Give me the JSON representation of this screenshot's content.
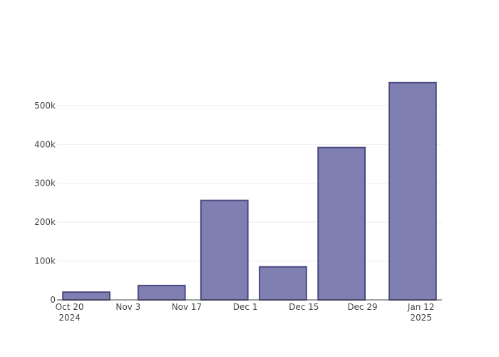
{
  "chart_data": {
    "type": "bar",
    "x": [
      "2024-10-24",
      "2024-11-11",
      "2024-11-26",
      "2024-12-10",
      "2024-12-24",
      "2025-01-10"
    ],
    "values": [
      20000,
      37000,
      256000,
      85000,
      392000,
      559000
    ],
    "color": "#7f7fb1",
    "edge_color": "#4b4b84",
    "xlim": [
      "2024-10-17",
      "2025-01-17"
    ],
    "xticks": [
      {
        "value": "2024-10-20",
        "label": "Oct 20",
        "sublabel": "2024"
      },
      {
        "value": "2024-11-03",
        "label": "Nov 3"
      },
      {
        "value": "2024-11-17",
        "label": "Nov 17"
      },
      {
        "value": "2024-12-01",
        "label": "Dec 1"
      },
      {
        "value": "2024-12-15",
        "label": "Dec 15"
      },
      {
        "value": "2024-12-29",
        "label": "Dec 29"
      },
      {
        "value": "2025-01-12",
        "label": "Jan 12",
        "sublabel": "2025"
      }
    ],
    "ylim": [
      0,
      588000
    ],
    "yticks": [
      0,
      {
        "value": 100000,
        "label": "100k"
      },
      {
        "value": 200000,
        "label": "200k"
      },
      {
        "value": 300000,
        "label": "300k"
      },
      {
        "value": 400000,
        "label": "400k"
      },
      {
        "value": 500000,
        "label": "500k"
      }
    ],
    "grid": true
  }
}
